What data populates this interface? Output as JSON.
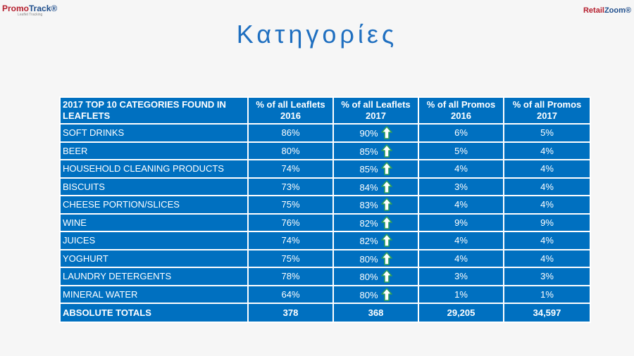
{
  "logos": {
    "left": {
      "first": "Promo",
      "second": "Track®",
      "tagline": "Leaflet Tracking"
    },
    "right": {
      "first": "Retail",
      "second": "Zoom®"
    }
  },
  "title": "Κατηγορίες",
  "table": {
    "header": [
      "2017 TOP 10 CATEGORIES FOUND IN LEAFLETS",
      "% of all Leaflets 2016",
      "% of all Leaflets 2017",
      "% of all Promos 2016",
      "% of all Promos 2017"
    ],
    "rows": [
      [
        "SOFT DRINKS",
        "86%",
        "90%",
        "6%",
        "5%"
      ],
      [
        "BEER",
        "80%",
        "85%",
        "5%",
        "4%"
      ],
      [
        "HOUSEHOLD CLEANING PRODUCTS",
        "74%",
        "85%",
        "4%",
        "4%"
      ],
      [
        "BISCUITS",
        "73%",
        "84%",
        "3%",
        "4%"
      ],
      [
        "CHEESE PORTION/SLICES",
        "75%",
        "83%",
        "4%",
        "4%"
      ],
      [
        "WINE",
        "76%",
        "82%",
        "9%",
        "9%"
      ],
      [
        "JUICES",
        "74%",
        "82%",
        "4%",
        "4%"
      ],
      [
        "YOGHURT",
        "75%",
        "80%",
        "4%",
        "4%"
      ],
      [
        "LAUNDRY DETERGENTS",
        "78%",
        "80%",
        "3%",
        "3%"
      ],
      [
        "MINERAL WATER",
        "64%",
        "80%",
        "1%",
        "1%"
      ]
    ],
    "totals": [
      "ABSOLUTE TOTALS",
      "378",
      "368",
      "29,205",
      "34,597"
    ]
  }
}
